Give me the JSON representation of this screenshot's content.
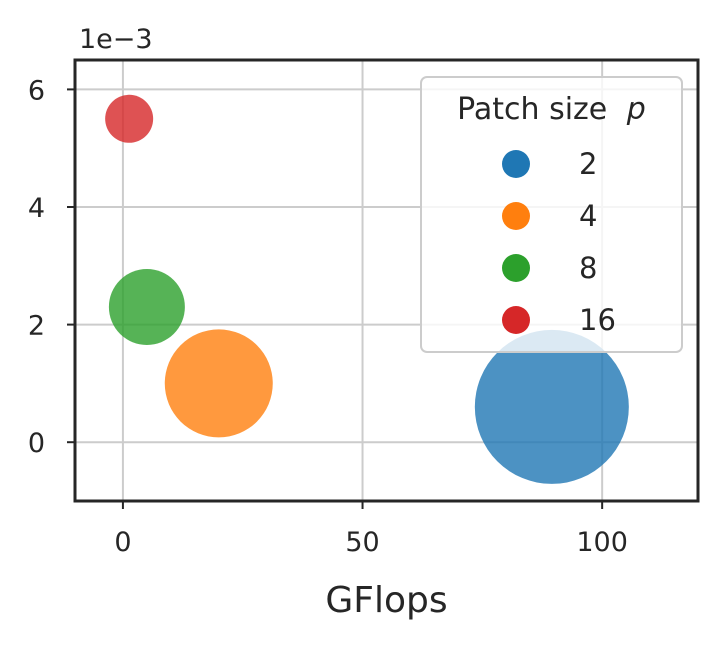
{
  "chart_data": {
    "type": "scatter",
    "title": "",
    "xlabel": "GFlops",
    "ylabel": "",
    "y_exponent_label": "1e−3",
    "xlim": [
      -10,
      120
    ],
    "ylim": [
      -1,
      6.5
    ],
    "y_scale_factor": 0.001,
    "xticks": [
      0,
      50,
      100
    ],
    "xtick_labels": [
      "0",
      "50",
      "100"
    ],
    "yticks": [
      0,
      2,
      4,
      6
    ],
    "ytick_labels": [
      "0",
      "2",
      "4",
      "6"
    ],
    "grid": true,
    "legend": {
      "title": "Patch size",
      "title_var": "p",
      "placement": "top-right",
      "entries": [
        "2",
        "4",
        "8",
        "16"
      ]
    },
    "series": [
      {
        "name": "2",
        "x": 89.5,
        "y": 0.6,
        "size_rank": 4,
        "color": "#1f77b4"
      },
      {
        "name": "4",
        "x": 20.0,
        "y": 1.0,
        "size_rank": 3,
        "color": "#ff7f0e"
      },
      {
        "name": "8",
        "x": 5.0,
        "y": 2.3,
        "size_rank": 2,
        "color": "#2ca02c"
      },
      {
        "name": "16",
        "x": 1.3,
        "y": 5.5,
        "size_rank": 1,
        "color": "#d62728"
      }
    ]
  }
}
